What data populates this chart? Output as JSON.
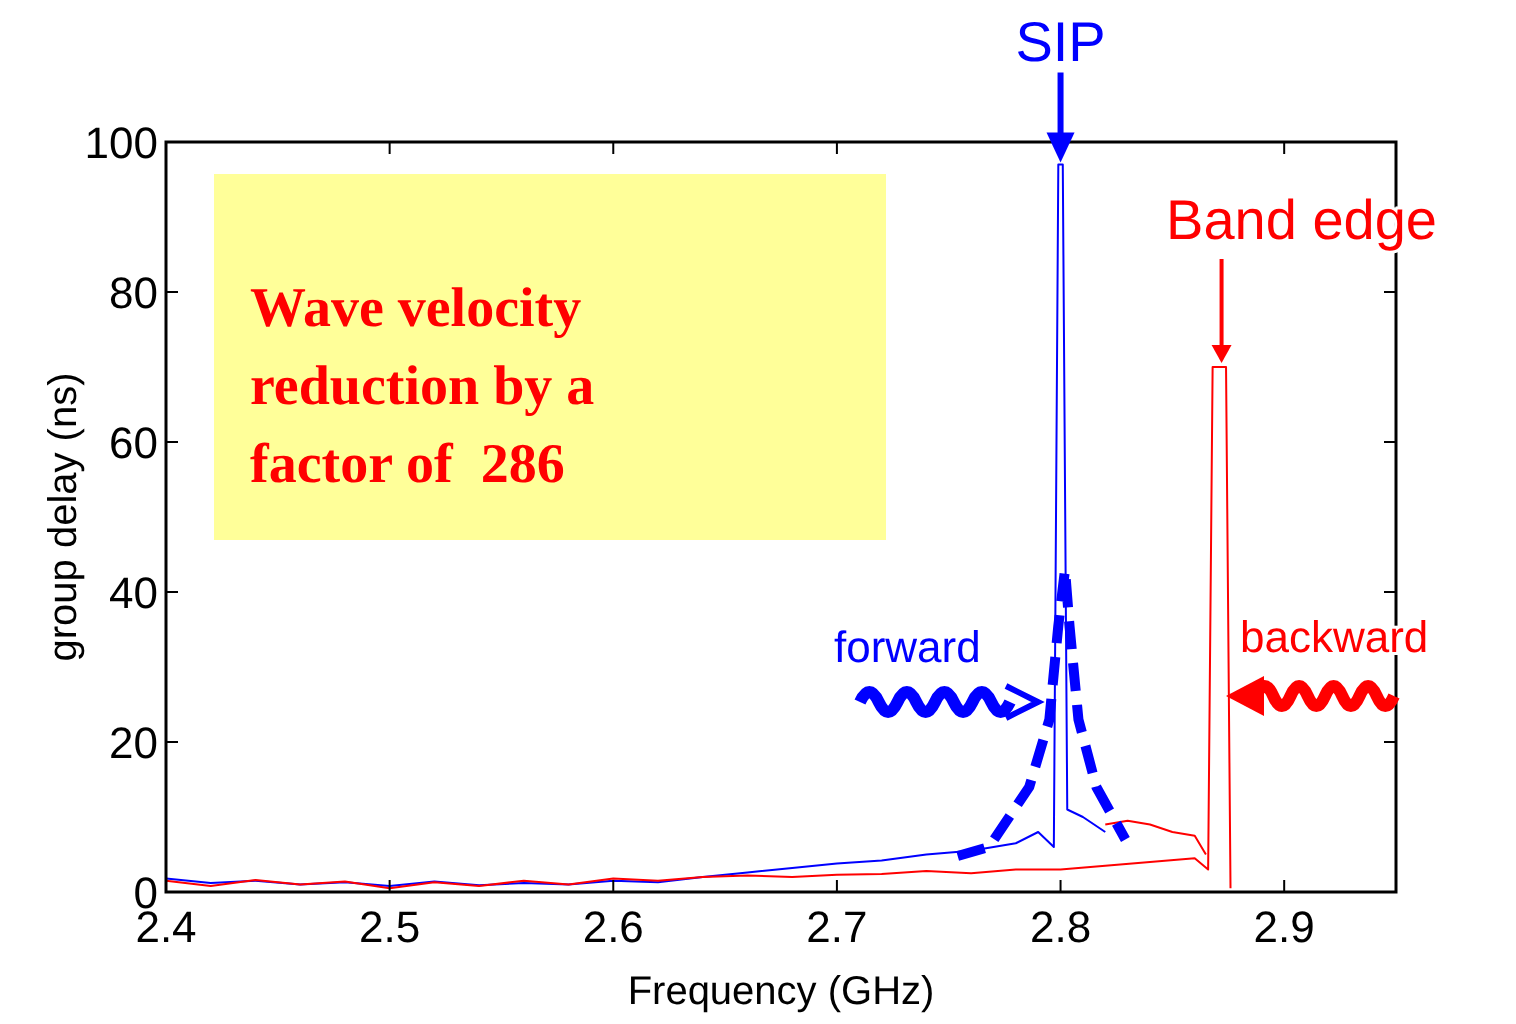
{
  "chart_data": {
    "type": "line",
    "xlabel": "Frequency (GHz)",
    "ylabel": "group delay (ns)",
    "xlim": [
      2.4,
      2.95
    ],
    "xticks": [
      2.4,
      2.5,
      2.6,
      2.7,
      2.8,
      2.9
    ],
    "ylim": [
      0,
      100
    ],
    "yticks": [
      0,
      20,
      40,
      60,
      80,
      100
    ],
    "grid": false,
    "series": [
      {
        "color": "#0000ff",
        "x": [
          2.4,
          2.42,
          2.44,
          2.46,
          2.48,
          2.5,
          2.52,
          2.54,
          2.56,
          2.58,
          2.6,
          2.62,
          2.64,
          2.66,
          2.68,
          2.7,
          2.72,
          2.74,
          2.76,
          2.78,
          2.79,
          2.797,
          2.799,
          2.801,
          2.803,
          2.81,
          2.82
        ],
        "values": [
          1.8,
          1.2,
          1.5,
          1.0,
          1.3,
          0.8,
          1.4,
          0.9,
          1.2,
          1.0,
          1.5,
          1.3,
          2.0,
          2.6,
          3.2,
          3.8,
          4.2,
          5.0,
          5.5,
          6.5,
          8,
          6,
          97,
          97,
          11,
          10,
          8
        ]
      },
      {
        "color": "#ff0000",
        "x": [
          2.4,
          2.42,
          2.44,
          2.46,
          2.48,
          2.5,
          2.52,
          2.54,
          2.56,
          2.58,
          2.6,
          2.62,
          2.64,
          2.66,
          2.68,
          2.7,
          2.72,
          2.74,
          2.76,
          2.78,
          2.8,
          2.82,
          2.84,
          2.86,
          2.866,
          2.868,
          2.874,
          2.876
        ],
        "values": [
          1.5,
          0.8,
          1.6,
          1.0,
          1.4,
          0.5,
          1.3,
          0.8,
          1.5,
          1.0,
          1.8,
          1.5,
          2.0,
          2.2,
          2.0,
          2.3,
          2.4,
          2.8,
          2.5,
          3.0,
          3.0,
          3.5,
          4.0,
          4.5,
          3,
          70,
          70,
          0.5
        ]
      },
      {
        "color": "#ff0000",
        "x": [
          2.82,
          2.83,
          2.84,
          2.85,
          2.86,
          2.865
        ],
        "values": [
          9,
          9.5,
          9,
          8,
          7.5,
          5
        ]
      },
      {
        "color": "#0000ff",
        "line_style": "dashed",
        "x": [
          2.754,
          2.768,
          2.786,
          2.795,
          2.799,
          2.802,
          2.804,
          2.808,
          2.816,
          2.829
        ],
        "values": [
          4.8,
          6,
          14,
          23,
          35.5,
          43,
          35.5,
          23,
          14,
          7
        ]
      }
    ],
    "annotations": [
      {
        "text": "SIP",
        "x": 2.8,
        "y": 97
      },
      {
        "text": "Band edge",
        "x": 2.872,
        "y": 70
      },
      "Wave velocity\nreduction by a\nfactor of  286",
      "forward",
      "backward"
    ]
  }
}
